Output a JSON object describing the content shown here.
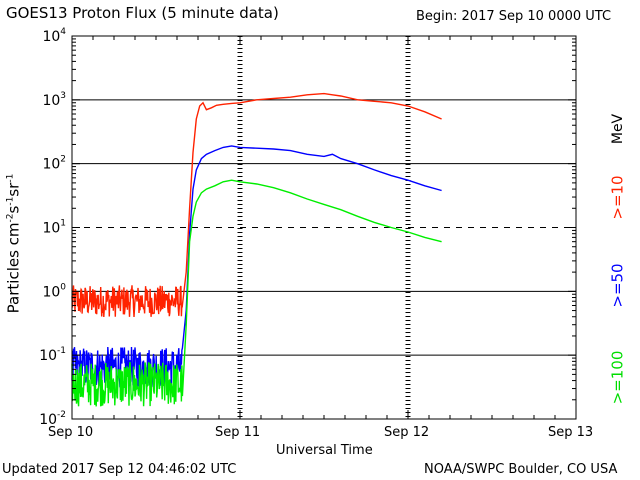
{
  "chart_data": {
    "type": "line",
    "title": "GOES13 Proton Flux (5 minute data)",
    "begin_label": "Begin: 2017 Sep 10 0000 UTC",
    "xlabel": "Universal Time",
    "ylabel_parts": [
      "Particles cm",
      "-2",
      "s",
      "-1",
      "sr",
      "-1"
    ],
    "footer_left": "Updated 2017 Sep 12 04:46:02 UTC",
    "footer_right": "NOAA/SWPC Boulder, CO USA",
    "units_label": "MeV",
    "x_unit": "days since 2017 Sep 10 0000 UTC",
    "xlim": [
      0,
      3
    ],
    "x_ticks": [
      {
        "value": 0,
        "label": "Sep 10"
      },
      {
        "value": 1,
        "label": "Sep 11"
      },
      {
        "value": 2,
        "label": "Sep 12"
      },
      {
        "value": 3,
        "label": "Sep 13"
      }
    ],
    "ylim": [
      0.01,
      10000
    ],
    "y_scale": "log",
    "y_ticks": [
      {
        "value": 0.01,
        "base": "10",
        "exp": "-2"
      },
      {
        "value": 0.1,
        "base": "10",
        "exp": "-1"
      },
      {
        "value": 1,
        "base": "10",
        "exp": "0"
      },
      {
        "value": 10,
        "base": "10",
        "exp": "1"
      },
      {
        "value": 100,
        "base": "10",
        "exp": "2"
      },
      {
        "value": 1000,
        "base": "10",
        "exp": "3"
      },
      {
        "value": 10000,
        "base": "10",
        "exp": "4"
      }
    ],
    "gridlines": [
      {
        "value": 1000,
        "style": "solid"
      },
      {
        "value": 100,
        "style": "solid"
      },
      {
        "value": 10,
        "style": "dashed"
      },
      {
        "value": 1,
        "style": "solid"
      },
      {
        "value": 0.1,
        "style": "solid"
      }
    ],
    "series": [
      {
        "name": ">=10",
        "color": "#ff2200",
        "base_level": 0.7,
        "noise": 0.25,
        "noise_until": 0.66,
        "points": [
          [
            0.0,
            0.7
          ],
          [
            0.66,
            0.7
          ],
          [
            0.68,
            2.0
          ],
          [
            0.7,
            20
          ],
          [
            0.72,
            150
          ],
          [
            0.74,
            500
          ],
          [
            0.76,
            800
          ],
          [
            0.78,
            900
          ],
          [
            0.8,
            700
          ],
          [
            0.83,
            750
          ],
          [
            0.86,
            820
          ],
          [
            0.9,
            850
          ],
          [
            0.95,
            880
          ],
          [
            1.0,
            900
          ],
          [
            1.05,
            950
          ],
          [
            1.1,
            1000
          ],
          [
            1.2,
            1050
          ],
          [
            1.3,
            1100
          ],
          [
            1.4,
            1200
          ],
          [
            1.5,
            1250
          ],
          [
            1.55,
            1200
          ],
          [
            1.6,
            1150
          ],
          [
            1.7,
            1000
          ],
          [
            1.8,
            950
          ],
          [
            1.9,
            900
          ],
          [
            2.0,
            800
          ],
          [
            2.1,
            650
          ],
          [
            2.2,
            500
          ]
        ]
      },
      {
        "name": ">=50",
        "color": "#0000ff",
        "base_level": 0.065,
        "noise": 0.32,
        "noise_until": 0.66,
        "points": [
          [
            0.0,
            0.065
          ],
          [
            0.66,
            0.065
          ],
          [
            0.68,
            0.5
          ],
          [
            0.7,
            8
          ],
          [
            0.72,
            40
          ],
          [
            0.74,
            80
          ],
          [
            0.77,
            120
          ],
          [
            0.8,
            140
          ],
          [
            0.85,
            160
          ],
          [
            0.9,
            180
          ],
          [
            0.95,
            190
          ],
          [
            1.0,
            180
          ],
          [
            1.1,
            175
          ],
          [
            1.2,
            170
          ],
          [
            1.3,
            160
          ],
          [
            1.4,
            140
          ],
          [
            1.5,
            130
          ],
          [
            1.55,
            140
          ],
          [
            1.6,
            120
          ],
          [
            1.7,
            100
          ],
          [
            1.8,
            80
          ],
          [
            1.9,
            65
          ],
          [
            2.0,
            55
          ],
          [
            2.1,
            45
          ],
          [
            2.2,
            38
          ]
        ]
      },
      {
        "name": ">=100",
        "color": "#00ee00",
        "base_level": 0.035,
        "noise": 0.35,
        "noise_until": 0.66,
        "points": [
          [
            0.0,
            0.035
          ],
          [
            0.66,
            0.035
          ],
          [
            0.68,
            0.3
          ],
          [
            0.7,
            6
          ],
          [
            0.72,
            15
          ],
          [
            0.74,
            25
          ],
          [
            0.77,
            35
          ],
          [
            0.8,
            40
          ],
          [
            0.85,
            45
          ],
          [
            0.9,
            52
          ],
          [
            0.95,
            55
          ],
          [
            1.0,
            52
          ],
          [
            1.1,
            48
          ],
          [
            1.2,
            42
          ],
          [
            1.3,
            35
          ],
          [
            1.4,
            28
          ],
          [
            1.5,
            23
          ],
          [
            1.6,
            19
          ],
          [
            1.7,
            15
          ],
          [
            1.8,
            12
          ],
          [
            1.9,
            10
          ],
          [
            2.0,
            8.5
          ],
          [
            2.1,
            7
          ],
          [
            2.2,
            6
          ]
        ]
      }
    ]
  }
}
